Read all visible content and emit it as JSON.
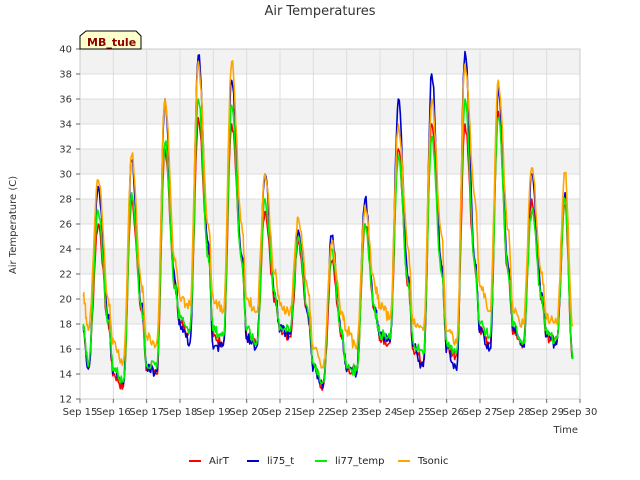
{
  "chart_data": {
    "type": "line",
    "title": "Air Temperatures",
    "xlabel": "Time",
    "ylabel": "Air Temperature (C)",
    "site_label": "MB_tule",
    "ylim": [
      12,
      40
    ],
    "yticks": [
      12,
      14,
      16,
      18,
      20,
      22,
      24,
      26,
      28,
      30,
      32,
      34,
      36,
      38,
      40
    ],
    "xlim": [
      0,
      15
    ],
    "xticks": [
      0,
      1,
      2,
      3,
      4,
      5,
      6,
      7,
      8,
      9,
      10,
      11,
      12,
      13,
      14,
      15
    ],
    "xtick_labels": [
      "Sep 15",
      "Sep 16",
      "Sep 17",
      "Sep 18",
      "Sep 19",
      "Sep 20",
      "Sep 21",
      "Sep 22",
      "Sep 23",
      "Sep 24",
      "Sep 25",
      "Sep 26",
      "Sep 27",
      "Sep 28",
      "Sep 29",
      "Sep 30"
    ],
    "grid": true,
    "legend_position": "bottom",
    "series": [
      {
        "name": "AirT",
        "color": "#ff0000",
        "x": [
          0.1,
          0.25,
          0.55,
          0.85,
          1.0,
          1.3,
          1.55,
          1.85,
          2.0,
          2.3,
          2.55,
          2.85,
          3.0,
          3.3,
          3.55,
          3.85,
          4.0,
          4.3,
          4.55,
          4.85,
          5.0,
          5.3,
          5.55,
          5.85,
          6.0,
          6.3,
          6.55,
          6.85,
          7.0,
          7.3,
          7.55,
          7.85,
          8.0,
          8.3,
          8.55,
          8.85,
          9.0,
          9.3,
          9.55,
          9.85,
          10.0,
          10.3,
          10.55,
          10.85,
          11.0,
          11.3,
          11.55,
          11.85,
          12.0,
          12.3,
          12.55,
          12.85,
          13.0,
          13.3,
          13.55,
          13.85,
          14.0,
          14.3,
          14.55,
          14.78
        ],
        "y": [
          17.5,
          14.5,
          26.0,
          18.0,
          14.0,
          13.0,
          28.0,
          19.0,
          14.5,
          14.0,
          32.0,
          21.0,
          18.0,
          17.5,
          34.5,
          24.0,
          17.0,
          16.5,
          34.0,
          23.0,
          17.0,
          16.5,
          27.0,
          20.0,
          17.5,
          17.0,
          24.5,
          18.5,
          14.5,
          13.0,
          23.0,
          17.0,
          14.5,
          14.0,
          26.0,
          19.0,
          17.0,
          16.5,
          32.0,
          21.0,
          16.0,
          15.0,
          34.0,
          22.5,
          16.0,
          15.5,
          34.0,
          22.5,
          17.5,
          16.5,
          35.0,
          22.0,
          17.5,
          16.5,
          28.0,
          20.0,
          17.0,
          16.5,
          27.5,
          15.2
        ]
      },
      {
        "name": "li75_t",
        "color": "#0000cc",
        "x": [
          0.1,
          0.25,
          0.55,
          0.85,
          1.0,
          1.3,
          1.55,
          1.85,
          2.0,
          2.3,
          2.55,
          2.85,
          3.0,
          3.3,
          3.55,
          3.85,
          4.0,
          4.3,
          4.55,
          4.85,
          5.0,
          5.3,
          5.55,
          5.85,
          6.0,
          6.3,
          6.55,
          6.85,
          7.0,
          7.3,
          7.55,
          7.85,
          8.0,
          8.3,
          8.55,
          8.85,
          9.0,
          9.3,
          9.55,
          9.85,
          10.0,
          10.3,
          10.55,
          10.85,
          11.0,
          11.3,
          11.55,
          11.85,
          12.0,
          12.3,
          12.55,
          12.85,
          13.0,
          13.3,
          13.55,
          13.85,
          14.0,
          14.3,
          14.55,
          14.78
        ],
        "y": [
          17.8,
          14.4,
          29.0,
          18.5,
          14.2,
          13.2,
          31.0,
          19.5,
          14.6,
          14.2,
          36.0,
          21.5,
          18.0,
          16.5,
          39.5,
          24.5,
          16.0,
          16.3,
          37.5,
          23.5,
          17.0,
          16.2,
          30.0,
          20.5,
          17.5,
          17.2,
          25.5,
          18.7,
          14.5,
          13.2,
          25.0,
          17.2,
          14.2,
          14.2,
          28.0,
          19.2,
          17.0,
          16.6,
          36.0,
          21.5,
          16.2,
          14.6,
          38.0,
          22.5,
          16.0,
          14.3,
          39.8,
          23.0,
          17.5,
          16.0,
          37.0,
          22.5,
          17.5,
          16.2,
          30.0,
          20.5,
          17.0,
          16.4,
          28.5,
          15.2
        ]
      },
      {
        "name": "li77_temp",
        "color": "#00ee00",
        "x": [
          0.1,
          0.25,
          0.55,
          0.85,
          1.0,
          1.3,
          1.55,
          1.85,
          2.0,
          2.3,
          2.55,
          2.85,
          3.0,
          3.3,
          3.55,
          3.85,
          4.0,
          4.3,
          4.55,
          4.85,
          5.0,
          5.3,
          5.55,
          5.85,
          6.0,
          6.3,
          6.55,
          6.85,
          7.0,
          7.3,
          7.55,
          7.85,
          8.0,
          8.3,
          8.55,
          8.85,
          9.0,
          9.3,
          9.55,
          9.85,
          10.0,
          10.3,
          10.55,
          10.85,
          11.0,
          11.3,
          11.55,
          11.85,
          12.0,
          12.3,
          12.55,
          12.85,
          13.0,
          13.3,
          13.55,
          13.85,
          14.0,
          14.3,
          14.55,
          14.78
        ],
        "y": [
          18.0,
          14.6,
          27.0,
          18.3,
          14.5,
          13.4,
          28.5,
          19.2,
          14.8,
          14.5,
          32.5,
          21.0,
          18.5,
          17.6,
          36.0,
          23.5,
          17.5,
          17.0,
          35.5,
          23.0,
          17.5,
          16.4,
          28.0,
          20.2,
          17.8,
          17.4,
          25.0,
          18.8,
          14.8,
          13.4,
          24.0,
          17.2,
          14.5,
          14.3,
          26.0,
          19.0,
          17.2,
          16.8,
          31.5,
          21.0,
          16.5,
          15.6,
          33.0,
          22.0,
          16.5,
          15.8,
          36.0,
          22.5,
          18.0,
          17.0,
          34.5,
          22.0,
          17.8,
          16.6,
          27.0,
          20.0,
          17.2,
          16.8,
          28.0,
          15.2
        ]
      },
      {
        "name": "Tsonic",
        "color": "#ffa500",
        "x": [
          0.1,
          0.25,
          0.55,
          0.85,
          1.0,
          1.3,
          1.55,
          1.85,
          2.0,
          2.3,
          2.55,
          2.85,
          3.0,
          3.3,
          3.55,
          3.85,
          4.0,
          4.3,
          4.55,
          4.85,
          5.0,
          5.3,
          5.55,
          5.85,
          6.0,
          6.3,
          6.55,
          6.85,
          7.0,
          7.3,
          7.55,
          7.85,
          8.0,
          8.3,
          8.55,
          8.85,
          9.0,
          9.3,
          9.55,
          9.85,
          10.0,
          10.3,
          10.55,
          10.85,
          11.0,
          11.3,
          11.55,
          11.85,
          12.0,
          12.3,
          12.55,
          12.85,
          13.0,
          13.3,
          13.55,
          13.85,
          14.0,
          14.3,
          14.55,
          14.78
        ],
        "y": [
          20.2,
          17.5,
          29.5,
          20.0,
          16.5,
          15.0,
          31.5,
          21.0,
          17.0,
          16.5,
          36.0,
          23.0,
          20.0,
          19.5,
          39.0,
          26.0,
          20.0,
          19.0,
          39.0,
          26.0,
          20.0,
          19.0,
          30.0,
          22.0,
          19.5,
          19.0,
          26.5,
          20.5,
          16.0,
          14.5,
          24.5,
          19.0,
          17.5,
          16.0,
          27.5,
          21.0,
          19.5,
          18.5,
          34.0,
          24.0,
          18.0,
          17.5,
          36.0,
          25.0,
          17.5,
          16.5,
          38.8,
          28.0,
          21.0,
          19.0,
          37.5,
          25.5,
          19.0,
          18.0,
          30.5,
          22.0,
          18.5,
          18.0,
          30.0,
          17.8
        ]
      }
    ]
  }
}
